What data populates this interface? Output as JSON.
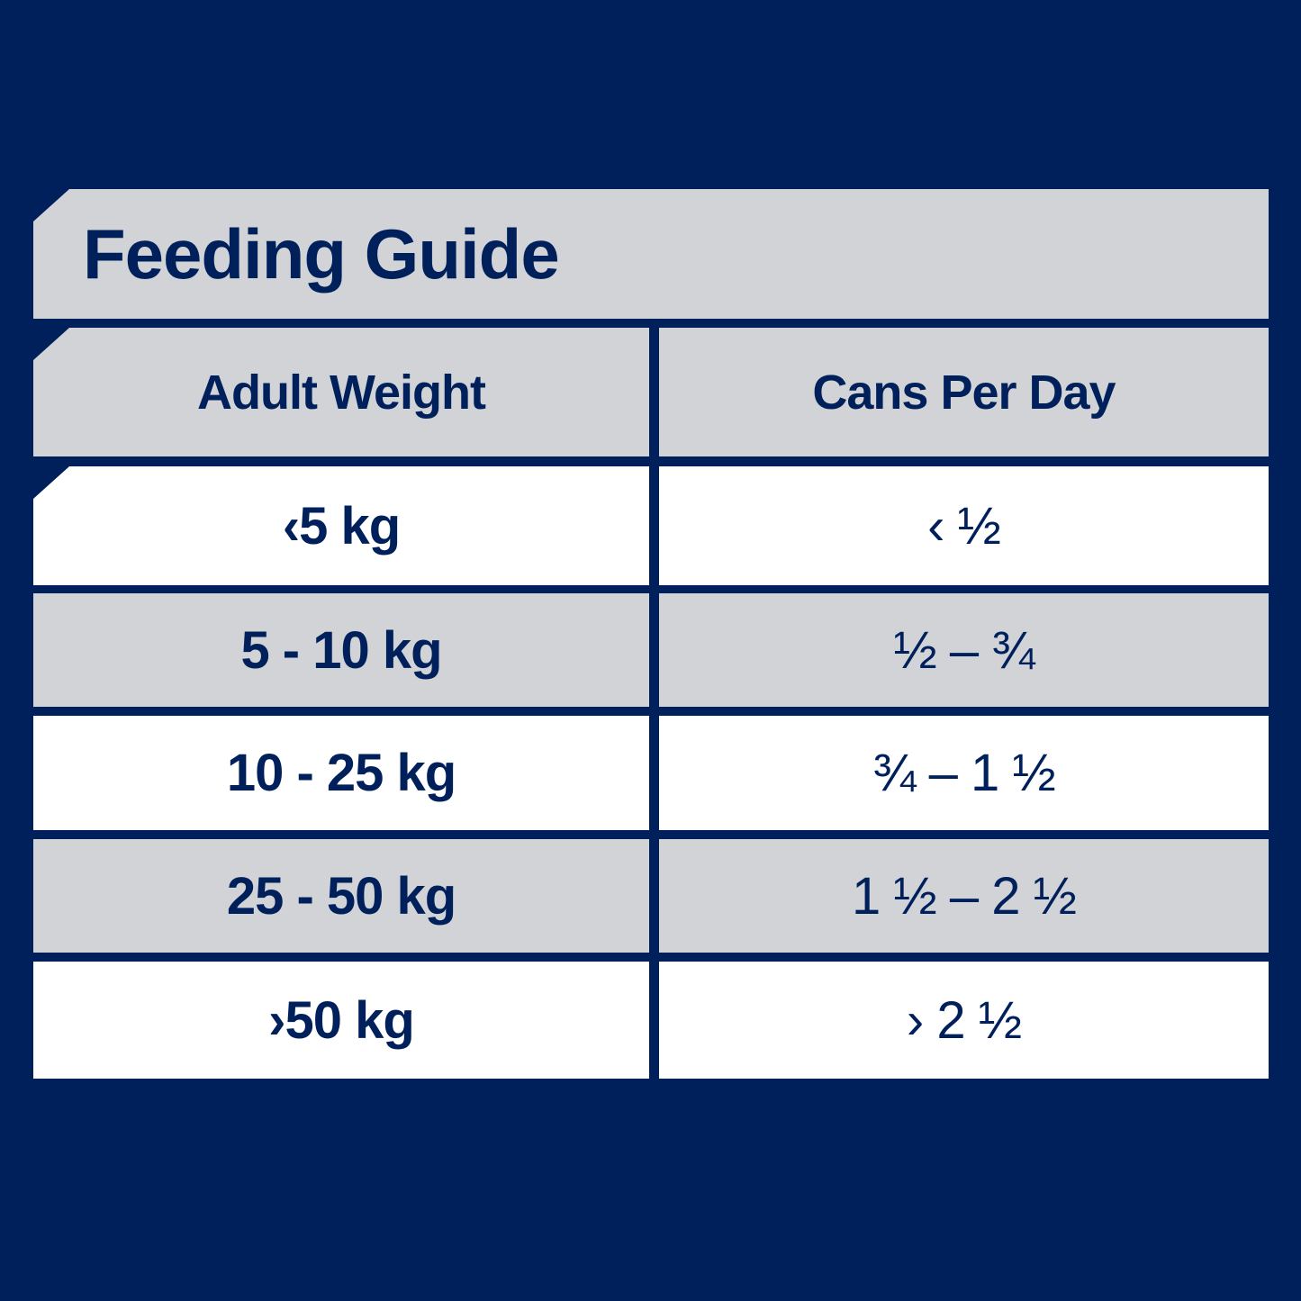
{
  "title": "Feeding Guide",
  "table": {
    "headers": [
      "Adult Weight",
      "Cans Per Day"
    ],
    "rows": [
      {
        "weight": "‹5 kg",
        "cans": "‹ ½"
      },
      {
        "weight": "5 - 10 kg",
        "cans": "½ – ¾"
      },
      {
        "weight": "10 - 25 kg",
        "cans": "¾ – 1 ½"
      },
      {
        "weight": "25 - 50 kg",
        "cans": "1 ½ – 2 ½"
      },
      {
        "weight": "›50 kg",
        "cans": "› 2 ½"
      }
    ]
  },
  "colors": {
    "background": "#00205b",
    "text": "#00205b",
    "header_fill": "#d1d3d6",
    "row_fill_light": "#ffffff",
    "row_fill_grey": "#d1d3d6"
  }
}
